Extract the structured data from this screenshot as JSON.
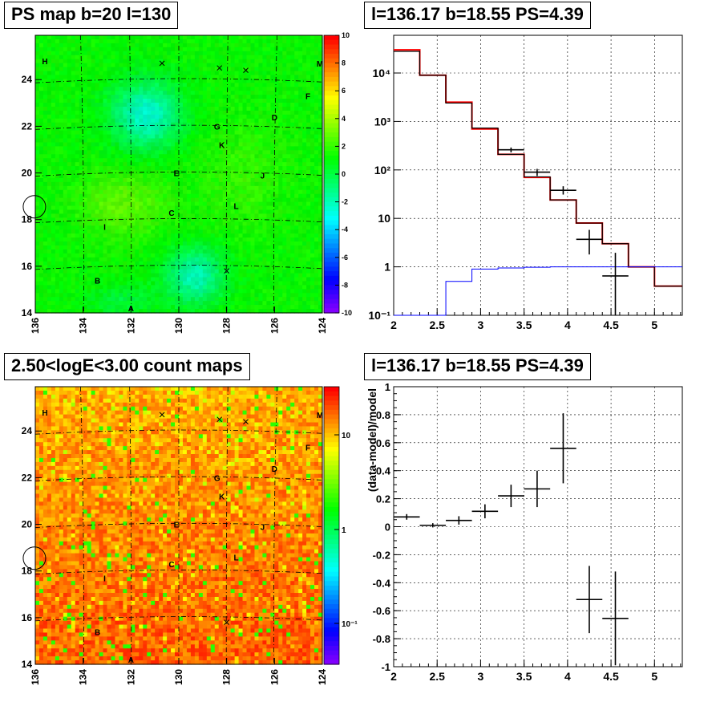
{
  "panels": {
    "ps_map": {
      "title": "PS map b=20 l=130",
      "x_ticks": [
        "136",
        "134",
        "132",
        "130",
        "128",
        "126",
        "124"
      ],
      "y_ticks": [
        "14",
        "16",
        "18",
        "20",
        "22",
        "24"
      ],
      "colorbar_ticks": [
        "10",
        "8",
        "6",
        "4",
        "2",
        "0",
        "-2",
        "-4",
        "-6",
        "-8",
        "-10"
      ],
      "labels": [
        "H",
        "M",
        "F",
        "D",
        "G",
        "K",
        "E",
        "J",
        "C",
        "L",
        "I",
        "B",
        "A"
      ]
    },
    "count_map": {
      "title": "2.50<logE<3.00 count maps",
      "x_ticks": [
        "136",
        "134",
        "132",
        "130",
        "128",
        "126",
        "124"
      ],
      "y_ticks": [
        "14",
        "16",
        "18",
        "20",
        "22",
        "24"
      ],
      "colorbar_ticks": [
        "10",
        "1",
        "10⁻¹"
      ],
      "labels": [
        "H",
        "M",
        "F",
        "D",
        "G",
        "K",
        "E",
        "J",
        "C",
        "L",
        "I",
        "B",
        "A"
      ]
    },
    "spectrum": {
      "title": "l=136.17 b=18.55 PS=4.39"
    },
    "residual": {
      "title": "l=136.17 b=18.55 PS=4.39"
    }
  },
  "chart_data": [
    {
      "type": "heatmap",
      "title": "PS map b=20 l=130",
      "xlim": [
        136,
        124
      ],
      "ylim": [
        14,
        25.9
      ],
      "zlim": [
        -10,
        10
      ],
      "colorbar": "rainbow",
      "markers": [
        {
          "label": "H",
          "l": 135.6,
          "b": 24.8
        },
        {
          "label": "M",
          "l": 124.1,
          "b": 24.7
        },
        {
          "label": "F",
          "l": 124.6,
          "b": 23.3
        },
        {
          "label": "D",
          "l": 126.0,
          "b": 22.4
        },
        {
          "label": "G",
          "l": 128.4,
          "b": 22.0
        },
        {
          "label": "K",
          "l": 128.2,
          "b": 21.2
        },
        {
          "label": "E",
          "l": 130.1,
          "b": 20.0
        },
        {
          "label": "J",
          "l": 126.5,
          "b": 19.9
        },
        {
          "label": "C",
          "l": 130.3,
          "b": 18.3
        },
        {
          "label": "L",
          "l": 127.6,
          "b": 18.6
        },
        {
          "label": "I",
          "l": 133.1,
          "b": 17.7
        },
        {
          "label": "B",
          "l": 133.4,
          "b": 15.4
        },
        {
          "label": "A",
          "l": 132.0,
          "b": 14.2
        }
      ],
      "crosses": [
        {
          "l": 130.7,
          "b": 24.7
        },
        {
          "l": 128.3,
          "b": 24.5
        },
        {
          "l": 127.2,
          "b": 24.4
        },
        {
          "l": 128.0,
          "b": 15.8
        }
      ],
      "circle": {
        "l": 136.17,
        "b": 18.55
      }
    },
    {
      "type": "heatmap",
      "title": "2.50<logE<3.00 count maps",
      "xlim": [
        136,
        124
      ],
      "ylim": [
        14,
        25.9
      ],
      "zscale": "log",
      "zlim": [
        0.05,
        20
      ],
      "markers": [
        {
          "label": "H",
          "l": 135.6,
          "b": 24.8
        },
        {
          "label": "M",
          "l": 124.1,
          "b": 24.7
        },
        {
          "label": "F",
          "l": 124.6,
          "b": 23.3
        },
        {
          "label": "D",
          "l": 126.0,
          "b": 22.4
        },
        {
          "label": "G",
          "l": 128.4,
          "b": 22.0
        },
        {
          "label": "K",
          "l": 128.2,
          "b": 21.2
        },
        {
          "label": "E",
          "l": 130.1,
          "b": 20.0
        },
        {
          "label": "J",
          "l": 126.5,
          "b": 19.9
        },
        {
          "label": "C",
          "l": 130.3,
          "b": 18.3
        },
        {
          "label": "L",
          "l": 127.6,
          "b": 18.6
        },
        {
          "label": "I",
          "l": 133.1,
          "b": 17.7
        },
        {
          "label": "B",
          "l": 133.4,
          "b": 15.4
        },
        {
          "label": "A",
          "l": 132.0,
          "b": 14.2
        }
      ],
      "crosses": [
        {
          "l": 130.7,
          "b": 24.7
        },
        {
          "l": 128.3,
          "b": 24.5
        },
        {
          "l": 127.2,
          "b": 24.4
        },
        {
          "l": 128.0,
          "b": 15.8
        }
      ],
      "circle": {
        "l": 136.17,
        "b": 18.55
      }
    },
    {
      "type": "line",
      "title": "l=136.17 b=18.55 PS=4.39",
      "xlim": [
        2,
        5.32
      ],
      "ylim": [
        0.1,
        60000
      ],
      "yscale": "log",
      "x_ticks": [
        "2",
        "2.5",
        "3",
        "3.5",
        "4",
        "4.5",
        "5"
      ],
      "y_ticks": [
        {
          "v": 0.1,
          "label": "10⁻¹"
        },
        {
          "v": 1,
          "label": "1"
        },
        {
          "v": 10,
          "label": "10"
        },
        {
          "v": 100,
          "label": "10²"
        },
        {
          "v": 1000,
          "label": "10³"
        },
        {
          "v": 10000,
          "label": "10⁴"
        }
      ],
      "grid": true,
      "edges": [
        2.0,
        2.3,
        2.6,
        2.9,
        3.2,
        3.5,
        3.8,
        4.1,
        4.4,
        4.7,
        5.0,
        5.32
      ],
      "series": [
        {
          "color": "#ff0000",
          "values": [
            30000,
            9000,
            2500,
            700,
            210,
            70,
            24,
            8,
            3,
            1,
            0.4
          ]
        },
        {
          "color": "#000000",
          "values": [
            28000,
            9000,
            2400,
            730,
            210,
            72,
            24,
            8,
            3,
            1,
            0.4
          ]
        },
        {
          "color": "#0000ff",
          "values": [
            0.1,
            0.1,
            0.5,
            0.9,
            0.95,
            0.98,
            1.0,
            1.0,
            1.0,
            1.0,
            1.0
          ]
        }
      ],
      "data_points": [
        {
          "x": 3.35,
          "y": 260,
          "xerr": 0.15,
          "ylo": 230,
          "yhi": 290
        },
        {
          "x": 3.65,
          "y": 90,
          "xerr": 0.15,
          "ylo": 75,
          "yhi": 105
        },
        {
          "x": 3.95,
          "y": 38,
          "xerr": 0.15,
          "ylo": 31,
          "yhi": 46
        },
        {
          "x": 4.25,
          "y": 3.7,
          "xerr": 0.15,
          "ylo": 1.8,
          "yhi": 5.8
        },
        {
          "x": 4.55,
          "y": 0.65,
          "xerr": 0.15,
          "ylo": 0.1,
          "yhi": 1.95
        }
      ]
    },
    {
      "type": "scatter",
      "title": "l=136.17 b=18.55 PS=4.39",
      "ylabel": "(data-model)/model",
      "xlim": [
        2,
        5.32
      ],
      "ylim": [
        -1,
        1
      ],
      "x_ticks": [
        "2",
        "2.5",
        "3",
        "3.5",
        "4",
        "4.5",
        "5"
      ],
      "y_ticks": [
        "-1",
        "-0.8",
        "-0.6",
        "-0.4",
        "-0.2",
        "0",
        "0.2",
        "0.4",
        "0.6",
        "0.8",
        "1"
      ],
      "grid": true,
      "points": [
        {
          "x": 2.15,
          "y": 0.07,
          "xerr": 0.15,
          "yerr": 0.02
        },
        {
          "x": 2.45,
          "y": 0.01,
          "xerr": 0.15,
          "yerr": 0.015
        },
        {
          "x": 2.75,
          "y": 0.045,
          "xerr": 0.15,
          "yerr": 0.03
        },
        {
          "x": 3.05,
          "y": 0.11,
          "xerr": 0.15,
          "yerr": 0.05
        },
        {
          "x": 3.35,
          "y": 0.22,
          "xerr": 0.15,
          "yerr": 0.08
        },
        {
          "x": 3.65,
          "y": 0.27,
          "xerr": 0.15,
          "yerr": 0.13
        },
        {
          "x": 3.95,
          "y": 0.56,
          "xerr": 0.15,
          "yerr": 0.25
        },
        {
          "x": 4.25,
          "y": -0.52,
          "xerr": 0.15,
          "yerr": 0.24
        },
        {
          "x": 4.55,
          "y": -0.655,
          "xerr": 0.15,
          "yerr": 0.335
        }
      ]
    }
  ]
}
